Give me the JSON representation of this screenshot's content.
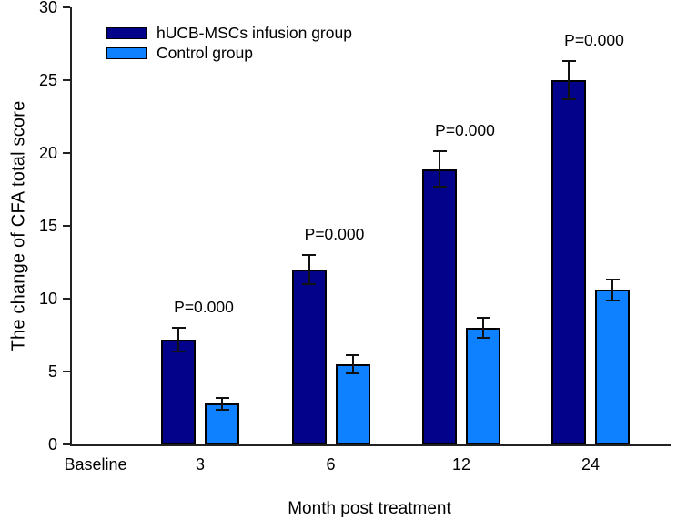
{
  "chart_data": {
    "type": "bar",
    "title": "",
    "ylabel": "The change of CFA total score",
    "xlabel": "Month post treatment",
    "ylim": [
      0,
      30
    ],
    "yticks": [
      0,
      5,
      10,
      15,
      20,
      25,
      30
    ],
    "categories": [
      "Baseline",
      "3",
      "6",
      "12",
      "24"
    ],
    "series": [
      {
        "name": "hUCB-MSCs infusion group",
        "color": "#02028b",
        "values": [
          null,
          7.2,
          12.0,
          18.9,
          25.0
        ],
        "errors": [
          null,
          0.8,
          1.0,
          1.2,
          1.3
        ]
      },
      {
        "name": "Control group",
        "color": "#0d81ff",
        "values": [
          null,
          2.8,
          5.5,
          8.0,
          10.6
        ],
        "errors": [
          null,
          0.4,
          0.6,
          0.7,
          0.7
        ]
      }
    ],
    "annotations": [
      {
        "category": "3",
        "label": "P=0.000"
      },
      {
        "category": "6",
        "label": "P=0.000"
      },
      {
        "category": "12",
        "label": "P=0.000"
      },
      {
        "category": "24",
        "label": "P=0.000"
      }
    ],
    "legend_position": "top-left",
    "grid": false,
    "axis_color": "#222222",
    "text_color": "#000000",
    "error_bar_color": "#111111"
  }
}
